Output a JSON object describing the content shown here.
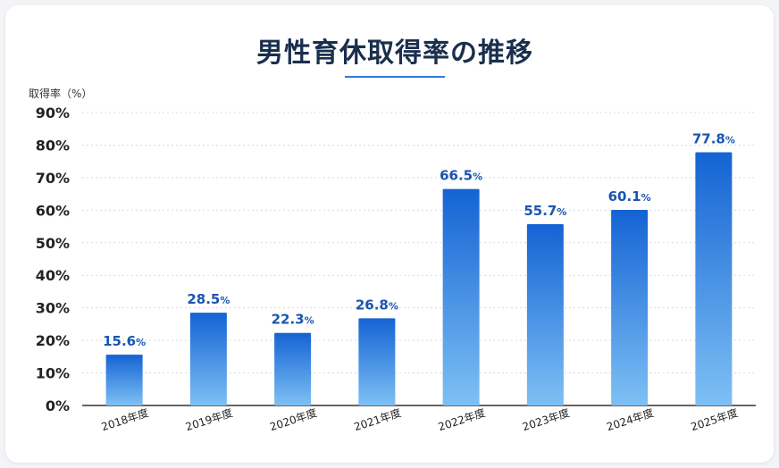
{
  "chart_data": {
    "type": "bar",
    "title": "男性育休取得率の推移",
    "ylabel": "取得率（%）",
    "xlabel": "",
    "ylim": [
      0,
      90
    ],
    "yticks": [
      "0%",
      "10%",
      "20%",
      "30%",
      "40%",
      "50%",
      "60%",
      "70%",
      "80%",
      "90%"
    ],
    "categories": [
      "2018年度",
      "2019年度",
      "2020年度",
      "2021年度",
      "2022年度",
      "2023年度",
      "2024年度",
      "2025年度"
    ],
    "values": [
      15.6,
      28.5,
      22.3,
      26.8,
      66.5,
      55.7,
      60.1,
      77.8
    ],
    "value_labels": [
      "15.6",
      "28.5",
      "22.3",
      "26.8",
      "66.5",
      "55.7",
      "60.1",
      "77.8"
    ],
    "value_unit": "%",
    "grid": true,
    "colors": {
      "bar_top": "#1463d4",
      "bar_bottom": "#7ec0f4",
      "label": "#1a55b0",
      "title": "#1a2f4d",
      "grid": "#d6dbe3",
      "axis": "#333333"
    }
  }
}
